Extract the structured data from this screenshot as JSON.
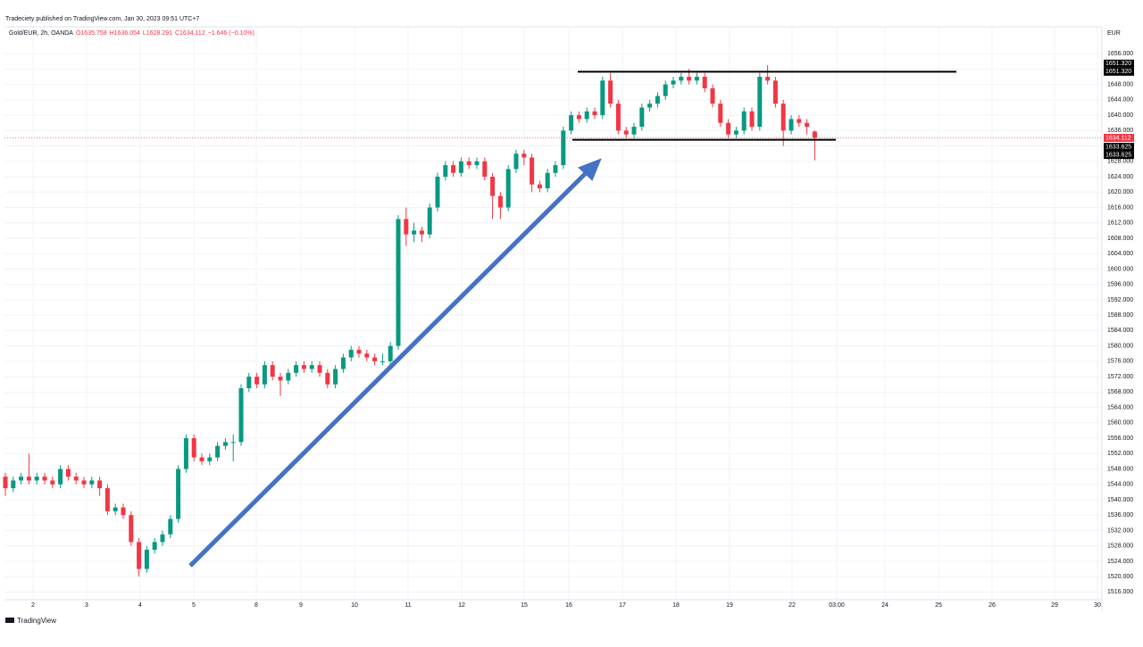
{
  "chart_data": {
    "type": "candlestick",
    "header": "Tradeciety published on TradingView.com, Jan 30, 2023 09:51 UTC+7",
    "symbol": "Gold/EUR, 2h, OANDA",
    "legend": [
      "O1635.758",
      "H1636.054",
      "L1628.291",
      "C1634.112",
      "−1.646 (−0.10%)"
    ],
    "currency": "EUR",
    "footer": "TradingView",
    "up_color": "#089981",
    "down_color": "#f23645",
    "ylim": [
      1514,
      1663
    ],
    "yticks": [
      {
        "value": 1516,
        "label": "1516.000"
      },
      {
        "value": 1520,
        "label": "1520.000"
      },
      {
        "value": 1524,
        "label": "1524.000"
      },
      {
        "value": 1528,
        "label": "1528.000"
      },
      {
        "value": 1532,
        "label": "1532.000"
      },
      {
        "value": 1536,
        "label": "1536.000"
      },
      {
        "value": 1540,
        "label": "1540.000"
      },
      {
        "value": 1544,
        "label": "1544.000"
      },
      {
        "value": 1548,
        "label": "1548.000"
      },
      {
        "value": 1552,
        "label": "1552.000"
      },
      {
        "value": 1556,
        "label": "1556.000"
      },
      {
        "value": 1560,
        "label": "1560.000"
      },
      {
        "value": 1564,
        "label": "1564.000"
      },
      {
        "value": 1568,
        "label": "1568.000"
      },
      {
        "value": 1572,
        "label": "1572.000"
      },
      {
        "value": 1576,
        "label": "1576.000"
      },
      {
        "value": 1580,
        "label": "1580.000"
      },
      {
        "value": 1584,
        "label": "1584.000"
      },
      {
        "value": 1588,
        "label": "1588.000"
      },
      {
        "value": 1592,
        "label": "1592.000"
      },
      {
        "value": 1596,
        "label": "1596.000"
      },
      {
        "value": 1600,
        "label": "1600.000"
      },
      {
        "value": 1604,
        "label": "1604.000"
      },
      {
        "value": 1608,
        "label": "1608.000"
      },
      {
        "value": 1612,
        "label": "1612.000"
      },
      {
        "value": 1616,
        "label": "1616.000"
      },
      {
        "value": 1620,
        "label": "1620.000"
      },
      {
        "value": 1624,
        "label": "1624.000"
      },
      {
        "value": 1628,
        "label": "1628.000"
      },
      {
        "value": 1632,
        "label": "1632.000"
      },
      {
        "value": 1636,
        "label": "1636.000"
      },
      {
        "value": 1640,
        "label": "1640.000"
      },
      {
        "value": 1644,
        "label": "1644.000"
      },
      {
        "value": 1648,
        "label": "1648.000"
      },
      {
        "value": 1652,
        "label": "1652.000"
      },
      {
        "value": 1656,
        "label": "1656.000"
      }
    ],
    "x_axis_labels": [
      "2",
      "3",
      "4",
      "5",
      "8",
      "9",
      "10",
      "11",
      "12",
      "15",
      "16",
      "17",
      "18",
      "19",
      "22",
      "03:00",
      "24",
      "25",
      "26",
      "29",
      "30"
    ],
    "resistance": {
      "value": 1651.32,
      "label": "1651.320"
    },
    "support": {
      "value": 1633.625,
      "label": "1633.625"
    },
    "last_price": {
      "value": 1634.112,
      "label": "1634.112"
    },
    "candles": [
      [
        1546,
        1547,
        1541,
        1543
      ],
      [
        1543,
        1546,
        1542,
        1545
      ],
      [
        1545,
        1547,
        1544,
        1546
      ],
      [
        1546,
        1552,
        1544,
        1545
      ],
      [
        1545,
        1547,
        1544,
        1546
      ],
      [
        1546,
        1547,
        1544,
        1545
      ],
      [
        1545,
        1546,
        1543,
        1544
      ],
      [
        1544,
        1549,
        1543,
        1548
      ],
      [
        1548,
        1549,
        1545,
        1546
      ],
      [
        1546,
        1547,
        1544,
        1545
      ],
      [
        1545,
        1546,
        1543,
        1544
      ],
      [
        1544,
        1546,
        1543,
        1545
      ],
      [
        1545,
        1546,
        1541,
        1543
      ],
      [
        1543,
        1544,
        1536,
        1537
      ],
      [
        1537,
        1539,
        1536,
        1538
      ],
      [
        1538,
        1539,
        1535,
        1536
      ],
      [
        1536,
        1537,
        1528,
        1529
      ],
      [
        1529,
        1530,
        1520,
        1522
      ],
      [
        1522,
        1528,
        1521,
        1527
      ],
      [
        1527,
        1530,
        1526,
        1529
      ],
      [
        1529,
        1532,
        1528,
        1531
      ],
      [
        1531,
        1536,
        1530,
        1535
      ],
      [
        1535,
        1549,
        1534,
        1548
      ],
      [
        1548,
        1557,
        1547,
        1556
      ],
      [
        1556,
        1557,
        1550,
        1551
      ],
      [
        1551,
        1552,
        1549,
        1550
      ],
      [
        1550,
        1552,
        1549,
        1551
      ],
      [
        1551,
        1555,
        1550,
        1554
      ],
      [
        1554,
        1556,
        1553,
        1555
      ],
      [
        1555,
        1557,
        1550,
        1555
      ],
      [
        1555,
        1570,
        1554,
        1569
      ],
      [
        1569,
        1573,
        1568,
        1572
      ],
      [
        1572,
        1573,
        1569,
        1570
      ],
      [
        1570,
        1576,
        1569,
        1575
      ],
      [
        1575,
        1576,
        1571,
        1572
      ],
      [
        1572,
        1573,
        1567,
        1571
      ],
      [
        1571,
        1574,
        1570,
        1573
      ],
      [
        1573,
        1576,
        1572,
        1575
      ],
      [
        1575,
        1576,
        1573,
        1574
      ],
      [
        1574,
        1576,
        1573,
        1575
      ],
      [
        1575,
        1576,
        1572,
        1573
      ],
      [
        1573,
        1574,
        1569,
        1570
      ],
      [
        1570,
        1575,
        1569,
        1574
      ],
      [
        1574,
        1578,
        1573,
        1577
      ],
      [
        1577,
        1580,
        1576,
        1579
      ],
      [
        1579,
        1580,
        1577,
        1578
      ],
      [
        1578,
        1579,
        1576,
        1577
      ],
      [
        1577,
        1578,
        1575,
        1576
      ],
      [
        1576,
        1578,
        1575,
        1576
      ],
      [
        1576,
        1581,
        1575,
        1580
      ],
      [
        1580,
        1614,
        1579,
        1613
      ],
      [
        1613,
        1616,
        1606,
        1609
      ],
      [
        1609,
        1612,
        1607,
        1610
      ],
      [
        1610,
        1611,
        1607,
        1609
      ],
      [
        1609,
        1617,
        1608,
        1616
      ],
      [
        1616,
        1625,
        1615,
        1624
      ],
      [
        1624,
        1628,
        1623,
        1627
      ],
      [
        1627,
        1628,
        1624,
        1625
      ],
      [
        1625,
        1629,
        1624,
        1628
      ],
      [
        1628,
        1629,
        1626,
        1627
      ],
      [
        1627,
        1629,
        1626,
        1628
      ],
      [
        1628,
        1629,
        1623,
        1624
      ],
      [
        1624,
        1625,
        1613,
        1619
      ],
      [
        1619,
        1620,
        1613,
        1616
      ],
      [
        1616,
        1627,
        1615,
        1626
      ],
      [
        1626,
        1631,
        1625,
        1630
      ],
      [
        1630,
        1631,
        1627,
        1629
      ],
      [
        1629,
        1630,
        1620,
        1622
      ],
      [
        1622,
        1623,
        1620,
        1621
      ],
      [
        1621,
        1626,
        1620,
        1625
      ],
      [
        1625,
        1628,
        1624,
        1627
      ],
      [
        1627,
        1637,
        1626,
        1636
      ],
      [
        1636,
        1641,
        1635,
        1640
      ],
      [
        1640,
        1641,
        1638,
        1639
      ],
      [
        1639,
        1642,
        1638,
        1641
      ],
      [
        1641,
        1642,
        1639,
        1640
      ],
      [
        1640,
        1650,
        1639,
        1649
      ],
      [
        1649,
        1651,
        1642,
        1643
      ],
      [
        1643,
        1644,
        1635,
        1636
      ],
      [
        1636,
        1637,
        1634,
        1635
      ],
      [
        1635,
        1638,
        1634,
        1637
      ],
      [
        1637,
        1643,
        1636,
        1642
      ],
      [
        1642,
        1644,
        1641,
        1643
      ],
      [
        1643,
        1646,
        1642,
        1645
      ],
      [
        1645,
        1649,
        1644,
        1648
      ],
      [
        1648,
        1650,
        1647,
        1649
      ],
      [
        1649,
        1651,
        1648,
        1650
      ],
      [
        1650,
        1652,
        1648,
        1649
      ],
      [
        1649,
        1651,
        1648,
        1650
      ],
      [
        1650,
        1651,
        1646,
        1647
      ],
      [
        1647,
        1648,
        1642,
        1643
      ],
      [
        1643,
        1644,
        1637,
        1638
      ],
      [
        1638,
        1639,
        1634,
        1635
      ],
      [
        1635,
        1637,
        1634,
        1636
      ],
      [
        1636,
        1642,
        1635,
        1641
      ],
      [
        1641,
        1642,
        1636,
        1637
      ],
      [
        1637,
        1651,
        1636,
        1650
      ],
      [
        1650,
        1653,
        1648,
        1649
      ],
      [
        1649,
        1650,
        1642,
        1643
      ],
      [
        1643,
        1644,
        1632,
        1636
      ],
      [
        1636,
        1640,
        1635,
        1639
      ],
      [
        1639,
        1640,
        1637,
        1638
      ],
      [
        1638,
        1639,
        1635,
        1637
      ],
      [
        1635.758,
        1636.054,
        1628.291,
        1634.112
      ]
    ]
  }
}
